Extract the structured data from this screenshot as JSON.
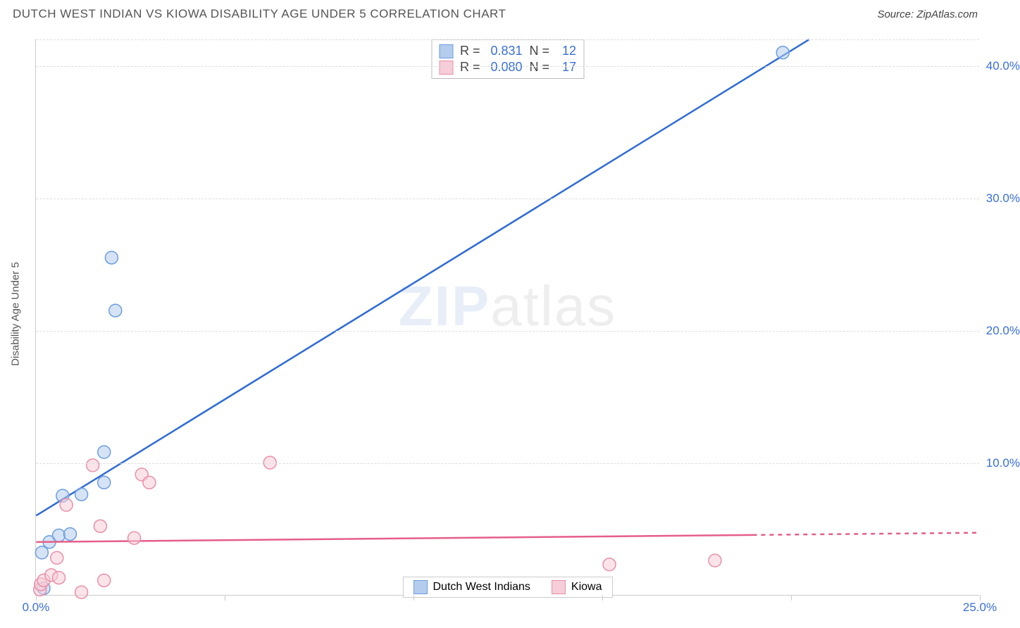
{
  "title": "DUTCH WEST INDIAN VS KIOWA DISABILITY AGE UNDER 5 CORRELATION CHART",
  "source": "Source: ZipAtlas.com",
  "ylabel": "Disability Age Under 5",
  "watermark_bold": "ZIP",
  "watermark_rest": "atlas",
  "chart": {
    "xlim": [
      0,
      25
    ],
    "ylim": [
      0,
      42
    ],
    "xticks": [
      0,
      5,
      10,
      15,
      20,
      25
    ],
    "xtick_labels_shown": {
      "0": "0.0%",
      "25": "25.0%"
    },
    "yticks": [
      10,
      20,
      30,
      40
    ],
    "ytick_labels": [
      "10.0%",
      "20.0%",
      "30.0%",
      "40.0%"
    ],
    "grid_color": "#dddddd",
    "axis_color": "#cccccc",
    "series": [
      {
        "name": "Dutch West Indians",
        "color_fill": "#b4cced",
        "color_stroke": "#6a9de0",
        "line_color": "#2e6bd6",
        "line_width": 2.5,
        "marker_radius": 9,
        "R": "0.831",
        "N": "12",
        "trend": {
          "x1": 0,
          "y1": 6.0,
          "x2": 20.5,
          "y2": 42.0
        },
        "points": [
          {
            "x": 0.15,
            "y": 3.2
          },
          {
            "x": 0.2,
            "y": 0.5
          },
          {
            "x": 0.35,
            "y": 4.0
          },
          {
            "x": 0.6,
            "y": 4.5
          },
          {
            "x": 0.9,
            "y": 4.6
          },
          {
            "x": 0.7,
            "y": 7.5
          },
          {
            "x": 1.2,
            "y": 7.6
          },
          {
            "x": 1.8,
            "y": 8.5
          },
          {
            "x": 1.8,
            "y": 10.8
          },
          {
            "x": 2.0,
            "y": 25.5
          },
          {
            "x": 2.1,
            "y": 21.5
          },
          {
            "x": 19.8,
            "y": 41.0
          }
        ]
      },
      {
        "name": "Kiowa",
        "color_fill": "#f6cdd8",
        "color_stroke": "#e98fa8",
        "line_color": "#e55e8a",
        "line_width": 2.5,
        "marker_radius": 9,
        "R": "0.080",
        "N": "17",
        "trend": {
          "x1": 0,
          "y1": 4.0,
          "x2": 25.0,
          "y2": 4.7,
          "solid_x": 19.0
        },
        "points": [
          {
            "x": 0.1,
            "y": 0.4
          },
          {
            "x": 0.12,
            "y": 0.8
          },
          {
            "x": 0.2,
            "y": 1.1
          },
          {
            "x": 0.4,
            "y": 1.5
          },
          {
            "x": 0.6,
            "y": 1.3
          },
          {
            "x": 0.55,
            "y": 2.8
          },
          {
            "x": 0.8,
            "y": 6.8
          },
          {
            "x": 1.2,
            "y": 0.2
          },
          {
            "x": 1.5,
            "y": 9.8
          },
          {
            "x": 1.7,
            "y": 5.2
          },
          {
            "x": 1.8,
            "y": 1.1
          },
          {
            "x": 2.6,
            "y": 4.3
          },
          {
            "x": 2.8,
            "y": 9.1
          },
          {
            "x": 3.0,
            "y": 8.5
          },
          {
            "x": 6.2,
            "y": 10.0
          },
          {
            "x": 15.2,
            "y": 2.3
          },
          {
            "x": 18.0,
            "y": 2.6
          }
        ]
      }
    ]
  },
  "legend_stats": {
    "r_label": "R =",
    "n_label": "N ="
  }
}
